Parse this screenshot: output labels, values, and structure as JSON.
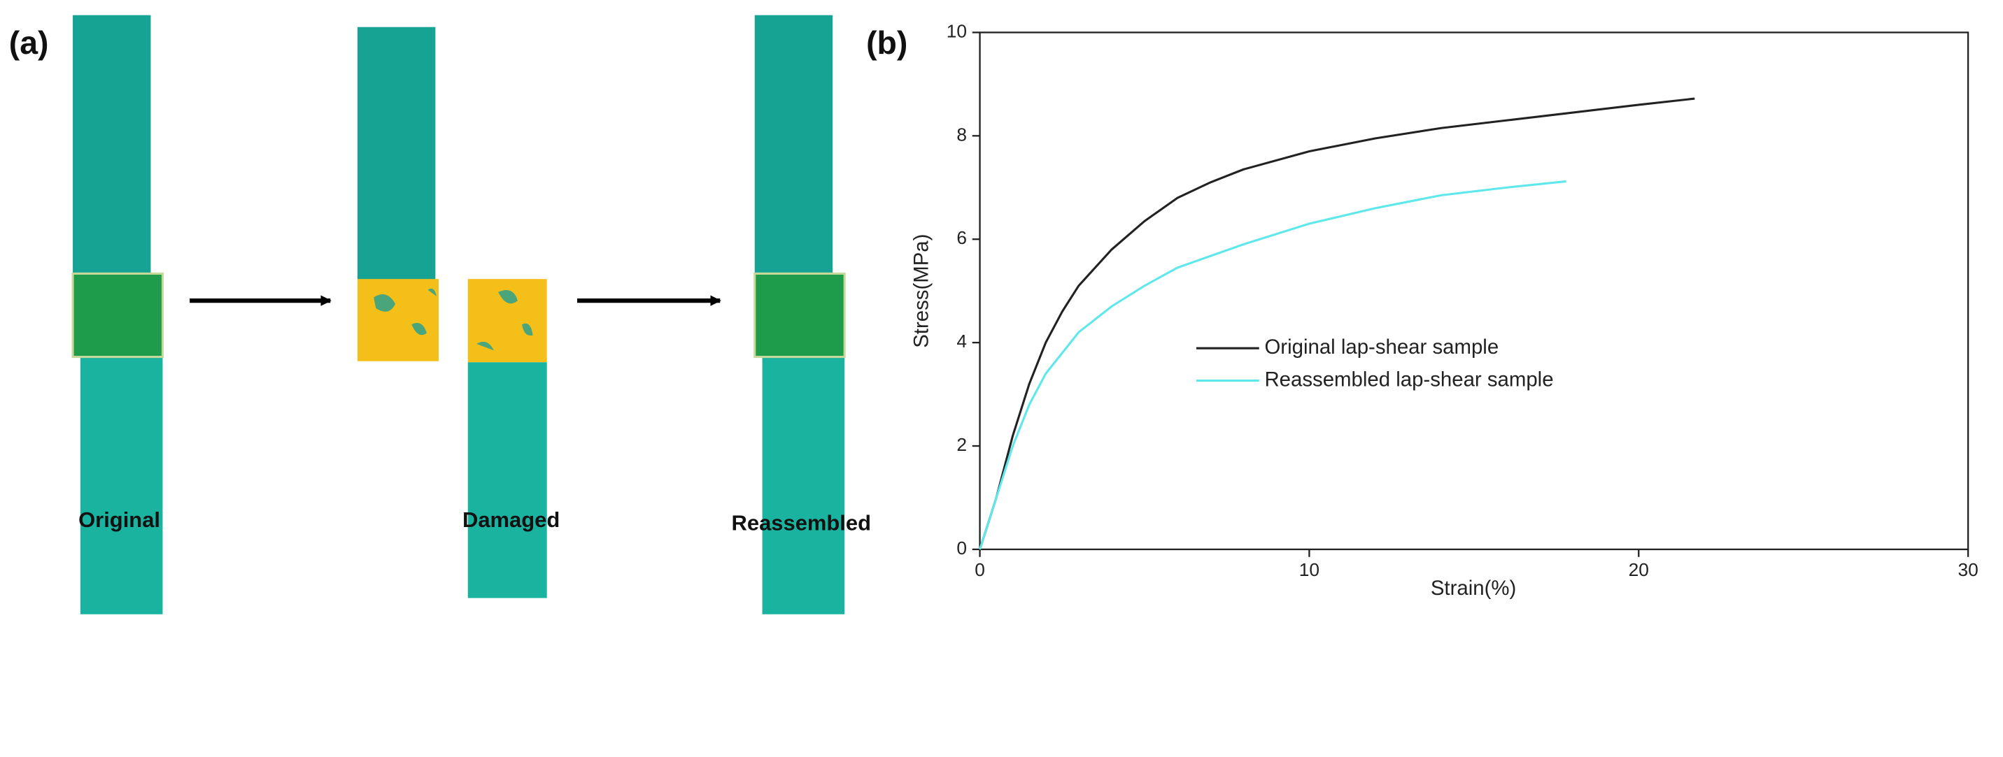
{
  "panels": [
    "(a)",
    "(b)"
  ],
  "illustration": {
    "labels": [
      "Original",
      "Damaged",
      "Reassembled"
    ]
  },
  "chart_data": {
    "type": "line",
    "xlabel": "Strain(%)",
    "ylabel": "Stress(MPa)",
    "xlim": [
      0,
      30
    ],
    "ylim": [
      0,
      10
    ],
    "xticks": [
      0,
      10,
      20,
      30
    ],
    "yticks": [
      0,
      2,
      4,
      6,
      8,
      10
    ],
    "legend": "center-right",
    "series": [
      {
        "name": "Original lap-shear sample",
        "color": "#222222",
        "x": [
          0,
          0.5,
          1,
          1.5,
          2,
          2.5,
          3,
          4,
          5,
          6,
          7,
          8,
          10,
          12,
          14,
          16,
          18,
          20,
          21.7
        ],
        "values": [
          0,
          1,
          2.2,
          3.2,
          4,
          4.6,
          5.1,
          5.8,
          6.35,
          6.8,
          7.1,
          7.35,
          7.7,
          7.95,
          8.15,
          8.3,
          8.45,
          8.6,
          8.72
        ]
      },
      {
        "name": "Reassembled lap-shear sample",
        "color": "#5ee8ec",
        "x": [
          0,
          0.5,
          1,
          1.5,
          2,
          3,
          4,
          5,
          6,
          8,
          10,
          12,
          14,
          16,
          17.8
        ],
        "values": [
          0,
          1,
          2,
          2.8,
          3.4,
          4.2,
          4.7,
          5.1,
          5.45,
          5.9,
          6.3,
          6.6,
          6.85,
          7,
          7.12
        ]
      }
    ]
  }
}
